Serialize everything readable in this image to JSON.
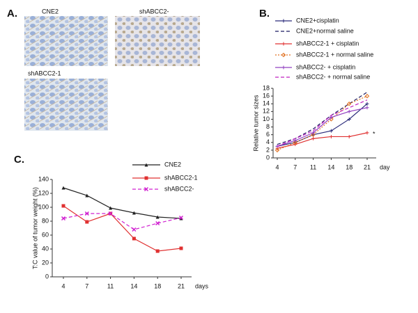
{
  "panel_a": {
    "label": "A.",
    "images": [
      {
        "caption": "CNE2"
      },
      {
        "caption": "shABCC2-"
      },
      {
        "caption": "shABCC2-1"
      }
    ]
  },
  "chart_data": [
    {
      "type": "line",
      "label": "B.",
      "ylabel": "Relative tumor sizes",
      "xlabel": "day",
      "categories": [
        "4",
        "7",
        "11",
        "14",
        "18",
        "21"
      ],
      "ylim": [
        0,
        18
      ],
      "yticks": [
        0,
        2,
        4,
        6,
        8,
        10,
        12,
        14,
        16,
        18
      ],
      "annotations": [
        "*"
      ],
      "series": [
        {
          "name": "CNE2+cisplatin",
          "color": "#2a2a7a",
          "dash": "solid",
          "marker": "plus",
          "values": [
            3,
            4,
            6,
            7,
            10,
            14
          ]
        },
        {
          "name": "CNE2+normal saline",
          "color": "#1a1a60",
          "dash": "dashed",
          "marker": "none",
          "values": [
            3.5,
            5,
            7.5,
            11,
            14,
            17
          ]
        },
        {
          "name": "shABCC2-1 + cisplatin",
          "color": "#e03030",
          "dash": "solid",
          "marker": "plus",
          "values": [
            2.5,
            3.5,
            5,
            5.5,
            5.5,
            6.5
          ]
        },
        {
          "name": "shABCC2-1 + normal saline",
          "color": "#e07020",
          "dash": "dotted",
          "marker": "diamond",
          "values": [
            2,
            4,
            6,
            10,
            14,
            16
          ]
        },
        {
          "name": "shABCC2- + cisplatin",
          "color": "#9040c0",
          "dash": "solid",
          "marker": "plus",
          "values": [
            3,
            4.5,
            6.5,
            10.5,
            12,
            13
          ]
        },
        {
          "name": "shABCC2- + normal saline",
          "color": "#c020c0",
          "dash": "dashed",
          "marker": "none",
          "values": [
            3,
            5,
            7,
            11,
            13,
            15
          ]
        }
      ]
    },
    {
      "type": "line",
      "label": "C.",
      "ylabel": "T:C value of tumor weight (%)",
      "xlabel": "days",
      "categories": [
        "4",
        "7",
        "11",
        "14",
        "18",
        "21"
      ],
      "ylim": [
        0,
        140
      ],
      "yticks": [
        0,
        20,
        40,
        60,
        80,
        100,
        120,
        140
      ],
      "series": [
        {
          "name": "CNE2",
          "color": "#222222",
          "dash": "solid",
          "marker": "triangle",
          "values": [
            128,
            117,
            99,
            92,
            86,
            84
          ]
        },
        {
          "name": "shABCC2-1",
          "color": "#e03030",
          "dash": "solid",
          "marker": "square",
          "values": [
            102,
            79,
            91,
            55,
            37,
            41
          ]
        },
        {
          "name": "shABCC2-",
          "color": "#d020d0",
          "dash": "dashed",
          "marker": "x",
          "values": [
            84,
            91,
            91,
            68,
            77,
            85
          ]
        }
      ]
    }
  ]
}
